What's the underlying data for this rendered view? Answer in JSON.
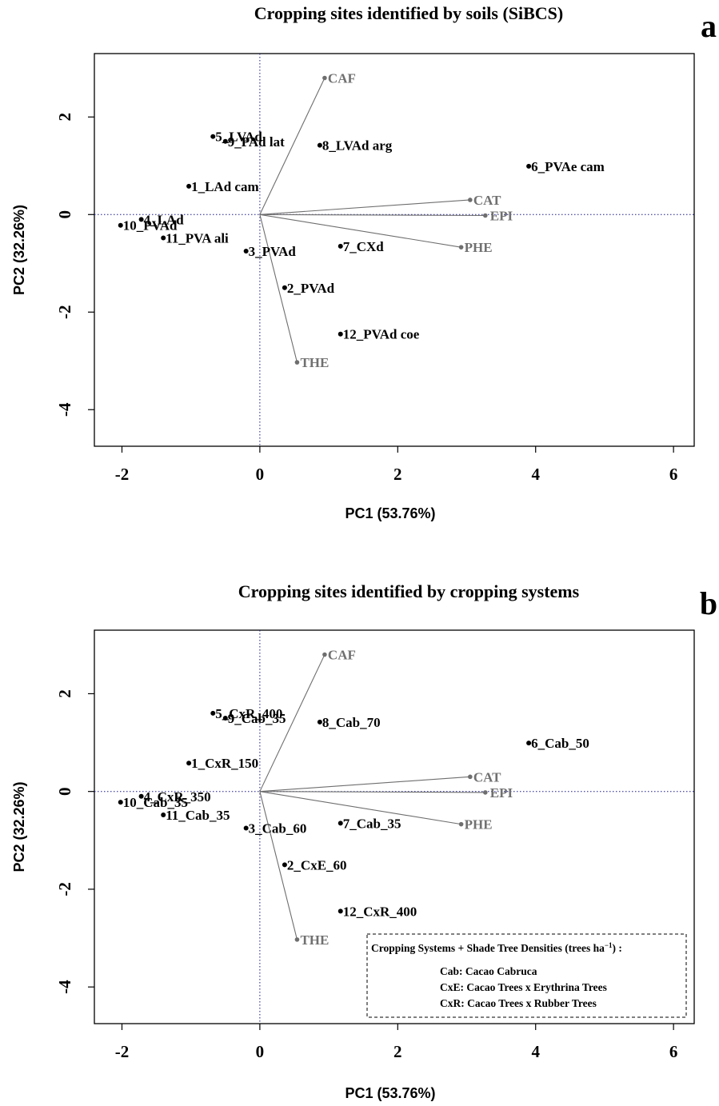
{
  "chart_data": [
    {
      "type": "scatter",
      "panel_letter": "a",
      "title": "Cropping sites identified by soils (SiBCS)",
      "xlabel": "PC1 (53.76%)",
      "ylabel": "PC2 (32.26%)",
      "xlim": [
        -2.4,
        6.3
      ],
      "ylim": [
        -4.75,
        3.3
      ],
      "xticks": [
        -2,
        0,
        2,
        4,
        6
      ],
      "yticks": [
        -4,
        -2,
        0,
        2
      ],
      "reference_lines": {
        "x": 0,
        "y": 0,
        "style": "dotted",
        "color": "#1a1a8c"
      },
      "sites": [
        {
          "label": "1_LAd cam",
          "x": -1.03,
          "y": 0.58
        },
        {
          "label": "2_PVAd",
          "x": 0.36,
          "y": -1.5
        },
        {
          "label": "3_PVAd",
          "x": -0.2,
          "y": -0.75
        },
        {
          "label": "4_LAd",
          "x": -1.72,
          "y": -0.1
        },
        {
          "label": "5_LVAd",
          "x": -0.68,
          "y": 1.6
        },
        {
          "label": "6_PVAe cam",
          "x": 3.9,
          "y": 0.99
        },
        {
          "label": "7_CXd",
          "x": 1.17,
          "y": -0.65
        },
        {
          "label": "8_LVAd arg",
          "x": 0.87,
          "y": 1.42
        },
        {
          "label": "9_PAd lat",
          "x": -0.5,
          "y": 1.5
        },
        {
          "label": "10_PVAd",
          "x": -2.02,
          "y": -0.22
        },
        {
          "label": "11_PVA ali",
          "x": -1.4,
          "y": -0.48
        },
        {
          "label": "12_PVAd coe",
          "x": 1.17,
          "y": -2.45
        }
      ],
      "variables": [
        {
          "label": "CAF",
          "x": 0.94,
          "y": 2.8
        },
        {
          "label": "CAT",
          "x": 3.05,
          "y": 0.3
        },
        {
          "label": "EPI",
          "x": 3.27,
          "y": -0.02
        },
        {
          "label": "PHE",
          "x": 2.92,
          "y": -0.67
        },
        {
          "label": "THE",
          "x": 0.54,
          "y": -3.03
        }
      ]
    },
    {
      "type": "scatter",
      "panel_letter": "b",
      "title": "Cropping sites identified by cropping systems",
      "xlabel": "PC1 (53.76%)",
      "ylabel": "PC2 (32.26%)",
      "xlim": [
        -2.4,
        6.3
      ],
      "ylim": [
        -4.75,
        3.3
      ],
      "xticks": [
        -2,
        0,
        2,
        4,
        6
      ],
      "yticks": [
        -4,
        -2,
        0,
        2
      ],
      "reference_lines": {
        "x": 0,
        "y": 0,
        "style": "dotted",
        "color": "#1a1a8c"
      },
      "sites": [
        {
          "label": "1_CxR_150",
          "x": -1.03,
          "y": 0.58
        },
        {
          "label": "2_CxE_60",
          "x": 0.36,
          "y": -1.5
        },
        {
          "label": "3_Cab_60",
          "x": -0.2,
          "y": -0.75
        },
        {
          "label": "4_CxR_350",
          "x": -1.72,
          "y": -0.1
        },
        {
          "label": "5_CxR_400",
          "x": -0.68,
          "y": 1.6
        },
        {
          "label": "6_Cab_50",
          "x": 3.9,
          "y": 0.99
        },
        {
          "label": "7_Cab_35",
          "x": 1.17,
          "y": -0.65
        },
        {
          "label": "8_Cab_70",
          "x": 0.87,
          "y": 1.42
        },
        {
          "label": "9_Cab_35",
          "x": -0.5,
          "y": 1.5
        },
        {
          "label": "10_Cab_35",
          "x": -2.02,
          "y": -0.22
        },
        {
          "label": "11_Cab_35",
          "x": -1.4,
          "y": -0.48
        },
        {
          "label": "12_CxR_400",
          "x": 1.17,
          "y": -2.45
        }
      ],
      "variables": [
        {
          "label": "CAF",
          "x": 0.94,
          "y": 2.8
        },
        {
          "label": "CAT",
          "x": 3.05,
          "y": 0.3
        },
        {
          "label": "EPI",
          "x": 3.27,
          "y": -0.02
        },
        {
          "label": "PHE",
          "x": 2.92,
          "y": -0.67
        },
        {
          "label": "THE",
          "x": 0.54,
          "y": -3.03
        }
      ],
      "legend": {
        "title": "Cropping Systems + Shade Tree Densities (trees ha",
        "title_superscript": "−1",
        "title_suffix": ") :",
        "items": [
          "Cab: Cacao Cabruca",
          "CxE: Cacao Trees x Erythrina Trees",
          "CxR: Cacao Trees x Rubber Trees"
        ],
        "placement": "bottom-right",
        "border": "dashed"
      }
    }
  ],
  "colors": {
    "points": "#000000",
    "variables": "#707070",
    "arrows": "#6e6e6e",
    "reference_lines": "#1a1a8c",
    "frame": "#000000"
  }
}
